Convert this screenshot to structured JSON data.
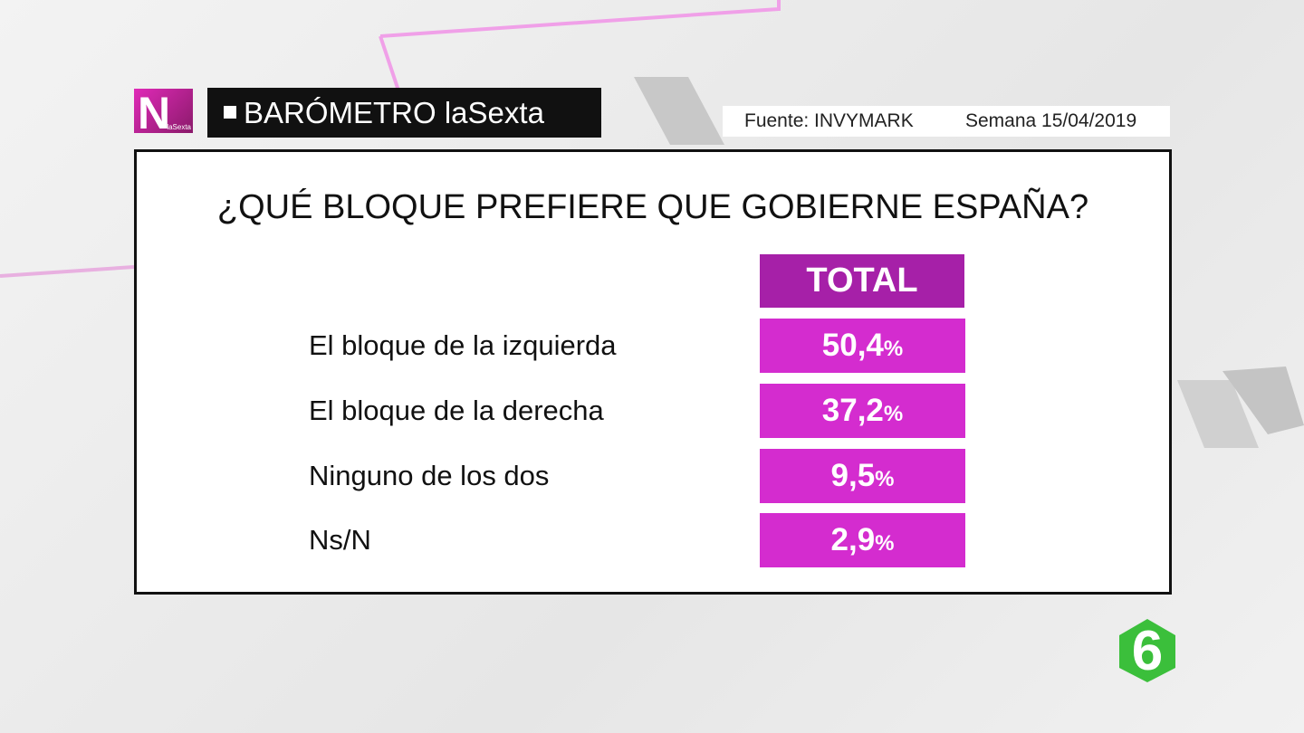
{
  "header": {
    "logo": "N",
    "logo_sub": "laSexta",
    "title": "BARÓMETRO laSexta",
    "source": "Fuente:  INVYMARK",
    "week": "Semana 15/04/2019"
  },
  "question": "¿QUÉ BLOQUE PREFIERE QUE GOBIERNE ESPAÑA?",
  "table": {
    "column": "TOTAL",
    "rows": [
      {
        "label": "El bloque de la izquierda",
        "value": "50,4",
        "unit": "%"
      },
      {
        "label": "El bloque de la derecha",
        "value": "37,2",
        "unit": "%"
      },
      {
        "label": "Ninguno de los dos",
        "value": "9,5",
        "unit": "%"
      },
      {
        "label": "Ns/N",
        "value": "2,9",
        "unit": "%"
      }
    ]
  },
  "channel_logo": "6"
}
